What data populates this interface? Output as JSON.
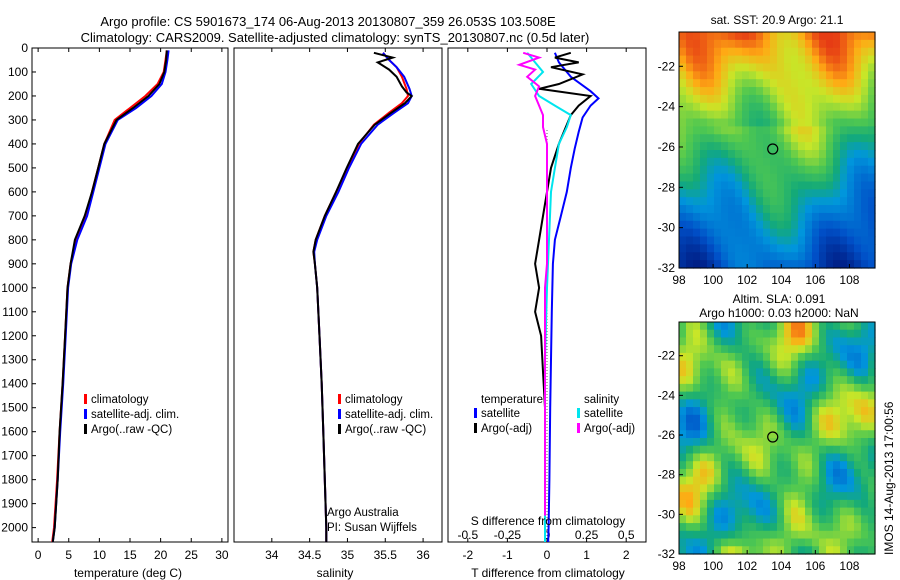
{
  "title_line1": "Argo profile: CS 5901673_174 06-Aug-2013 20130807_359 26.053S 103.508E",
  "title_line2": "Climatology: CARS2009. Satellite-adjusted climatology: synTS_20130807.nc (0.5d later)",
  "colors": {
    "climatology": "#ff0000",
    "satellite": "#0000ff",
    "argo": "#000000",
    "sat_salinity": "#00e5ee",
    "argo_salinity": "#ff00ff"
  },
  "chart_data": [
    {
      "type": "line",
      "name": "temperature",
      "xlabel": "temperature (deg C)",
      "xlim": [
        -1,
        31
      ],
      "ylim": [
        2060,
        0
      ],
      "xticks": [
        "0",
        "5",
        "10",
        "15",
        "20",
        "25",
        "30"
      ],
      "yticks": [
        "0",
        "100",
        "200",
        "300",
        "400",
        "500",
        "600",
        "700",
        "800",
        "900",
        "1000",
        "1100",
        "1200",
        "1300",
        "1400",
        "1500",
        "1600",
        "1700",
        "1800",
        "1900",
        "2000"
      ],
      "legend": [
        "climatology",
        "satellite-adj. clim.",
        "Argo(..raw -QC)"
      ],
      "series": [
        {
          "name": "climatology",
          "points": [
            [
              21,
              10
            ],
            [
              20.8,
              50
            ],
            [
              20.5,
              100
            ],
            [
              19.5,
              150
            ],
            [
              17.5,
              200
            ],
            [
              15,
              250
            ],
            [
              12.5,
              300
            ],
            [
              10.8,
              400
            ],
            [
              9.8,
              500
            ],
            [
              8.8,
              600
            ],
            [
              7.8,
              700
            ],
            [
              6.2,
              800
            ],
            [
              5.3,
              900
            ],
            [
              4.8,
              1000
            ],
            [
              4.4,
              1200
            ],
            [
              4,
              1400
            ],
            [
              3.5,
              1600
            ],
            [
              3.1,
              1800
            ],
            [
              2.6,
              2000
            ],
            [
              2.3,
              2060
            ]
          ]
        },
        {
          "name": "satellite-adj. clim.",
          "points": [
            [
              21.3,
              10
            ],
            [
              21.1,
              50
            ],
            [
              20.8,
              100
            ],
            [
              20.2,
              150
            ],
            [
              18.5,
              200
            ],
            [
              16,
              250
            ],
            [
              13,
              300
            ],
            [
              11,
              400
            ],
            [
              10,
              500
            ],
            [
              9,
              600
            ],
            [
              8,
              700
            ],
            [
              6.4,
              800
            ],
            [
              5.4,
              900
            ],
            [
              4.9,
              1000
            ],
            [
              4.5,
              1200
            ],
            [
              4.1,
              1400
            ],
            [
              3.6,
              1600
            ],
            [
              3.2,
              1800
            ],
            [
              2.7,
              2000
            ],
            [
              2.4,
              2060
            ]
          ]
        },
        {
          "name": "Argo(..raw -QC)",
          "points": [
            [
              21,
              10
            ],
            [
              20.9,
              50
            ],
            [
              20.6,
              100
            ],
            [
              19.8,
              150
            ],
            [
              18,
              200
            ],
            [
              15.5,
              250
            ],
            [
              12.8,
              300
            ],
            [
              10.8,
              400
            ],
            [
              9.8,
              500
            ],
            [
              8.8,
              600
            ],
            [
              7.6,
              700
            ],
            [
              6,
              800
            ],
            [
              5.3,
              900
            ],
            [
              4.8,
              1000
            ],
            [
              4.4,
              1200
            ],
            [
              4,
              1400
            ],
            [
              3.5,
              1600
            ],
            [
              3.2,
              1800
            ],
            [
              2.7,
              2000
            ],
            [
              2.4,
              2060
            ]
          ]
        }
      ]
    },
    {
      "type": "line",
      "name": "salinity",
      "xlabel": "salinity",
      "xlim": [
        33.5,
        36.25
      ],
      "ylim": [
        2060,
        0
      ],
      "xticks": [
        "34",
        "34.5",
        "35",
        "35.5",
        "36"
      ],
      "legend": [
        "climatology",
        "satellite-adj. clim.",
        "Argo(..raw -QC)"
      ],
      "annotation_line1": "Argo Australia",
      "annotation_line2": "PI: Susan Wijffels",
      "series": [
        {
          "name": "climatology",
          "points": [
            [
              35.47,
              20
            ],
            [
              35.55,
              50
            ],
            [
              35.65,
              80
            ],
            [
              35.72,
              120
            ],
            [
              35.78,
              170
            ],
            [
              35.8,
              200
            ],
            [
              35.72,
              230
            ],
            [
              35.55,
              270
            ],
            [
              35.35,
              320
            ],
            [
              35.15,
              400
            ],
            [
              35,
              500
            ],
            [
              34.85,
              600
            ],
            [
              34.7,
              700
            ],
            [
              34.58,
              800
            ],
            [
              34.55,
              850
            ],
            [
              34.57,
              900
            ],
            [
              34.6,
              1000
            ],
            [
              34.63,
              1200
            ],
            [
              34.66,
              1400
            ],
            [
              34.68,
              1600
            ],
            [
              34.7,
              1800
            ],
            [
              34.72,
              2000
            ],
            [
              34.72,
              2060
            ]
          ]
        },
        {
          "name": "satellite-adj. clim.",
          "points": [
            [
              35.47,
              20
            ],
            [
              35.55,
              50
            ],
            [
              35.65,
              80
            ],
            [
              35.75,
              120
            ],
            [
              35.82,
              170
            ],
            [
              35.85,
              200
            ],
            [
              35.8,
              230
            ],
            [
              35.62,
              270
            ],
            [
              35.4,
              320
            ],
            [
              35.18,
              400
            ],
            [
              35.02,
              500
            ],
            [
              34.88,
              600
            ],
            [
              34.72,
              700
            ],
            [
              34.6,
              800
            ],
            [
              34.56,
              850
            ],
            [
              34.57,
              900
            ],
            [
              34.6,
              1000
            ],
            [
              34.63,
              1200
            ],
            [
              34.66,
              1400
            ],
            [
              34.68,
              1600
            ],
            [
              34.7,
              1800
            ],
            [
              34.72,
              2000
            ],
            [
              34.72,
              2060
            ]
          ]
        },
        {
          "name": "Argo(..raw -QC)",
          "points": [
            [
              35.35,
              20
            ],
            [
              35.6,
              40
            ],
            [
              35.4,
              60
            ],
            [
              35.55,
              90
            ],
            [
              35.65,
              120
            ],
            [
              35.72,
              160
            ],
            [
              35.78,
              185
            ],
            [
              35.85,
              200
            ],
            [
              35.76,
              230
            ],
            [
              35.58,
              270
            ],
            [
              35.36,
              320
            ],
            [
              35.14,
              400
            ],
            [
              34.99,
              500
            ],
            [
              34.85,
              600
            ],
            [
              34.7,
              700
            ],
            [
              34.58,
              800
            ],
            [
              34.55,
              850
            ],
            [
              34.57,
              900
            ],
            [
              34.6,
              1000
            ],
            [
              34.63,
              1200
            ],
            [
              34.66,
              1400
            ],
            [
              34.68,
              1600
            ],
            [
              34.7,
              1800
            ],
            [
              34.72,
              2000
            ],
            [
              34.72,
              2060
            ]
          ]
        }
      ]
    },
    {
      "type": "line",
      "name": "differences",
      "xlabel": "T difference from climatology",
      "xlabel_top": "S difference from climatology",
      "xlim": [
        -2.5,
        2.5
      ],
      "ylim": [
        2060,
        0
      ],
      "xticks": [
        "-2",
        "-1",
        "0",
        "1",
        "2"
      ],
      "s_ticks": [
        "-0.5",
        "-0.25",
        "0",
        "0.25",
        "0.5"
      ],
      "legend_title_t": "temperature",
      "legend_title_s": "salinity",
      "legend": [
        "satellite",
        "Argo(-adj)",
        "satellite",
        "Argo(-adj)"
      ],
      "series": [
        {
          "name": "satellite",
          "points": [
            [
              0.2,
              20
            ],
            [
              0.3,
              60
            ],
            [
              0.6,
              120
            ],
            [
              1.1,
              180
            ],
            [
              1.3,
              210
            ],
            [
              1.1,
              240
            ],
            [
              0.9,
              290
            ],
            [
              0.8,
              350
            ],
            [
              0.7,
              420
            ],
            [
              0.6,
              500
            ],
            [
              0.5,
              600
            ],
            [
              0.35,
              700
            ],
            [
              0.2,
              800
            ],
            [
              0.15,
              900
            ],
            [
              0.12,
              1100
            ],
            [
              0.1,
              1300
            ],
            [
              0.08,
              1500
            ],
            [
              0.06,
              1800
            ],
            [
              0.04,
              2000
            ],
            [
              0.03,
              2060
            ]
          ]
        },
        {
          "name": "Argo(-adj)",
          "points": [
            [
              0.6,
              20
            ],
            [
              0.2,
              40
            ],
            [
              0.8,
              60
            ],
            [
              0.1,
              80
            ],
            [
              0.9,
              110
            ],
            [
              0.3,
              150
            ],
            [
              -0.2,
              170
            ],
            [
              1.1,
              200
            ],
            [
              0.8,
              240
            ],
            [
              0.6,
              280
            ],
            [
              0.5,
              320
            ],
            [
              0.3,
              400
            ],
            [
              0.1,
              500
            ],
            [
              0.0,
              600
            ],
            [
              -0.1,
              700
            ],
            [
              -0.2,
              800
            ],
            [
              -0.3,
              900
            ],
            [
              -0.2,
              1000
            ],
            [
              -0.3,
              1100
            ],
            [
              -0.15,
              1200
            ],
            [
              -0.1,
              1350
            ],
            [
              -0.05,
              1500
            ],
            [
              -0.05,
              1800
            ],
            [
              -0.05,
              1900
            ]
          ]
        },
        {
          "name": "satellite-salinity",
          "points": [
            [
              -0.5,
              20
            ],
            [
              -0.3,
              60
            ],
            [
              -0.1,
              100
            ],
            [
              -0.4,
              150
            ],
            [
              -0.2,
              200
            ],
            [
              0.2,
              240
            ],
            [
              0.6,
              280
            ],
            [
              0.5,
              330
            ],
            [
              0.3,
              400
            ],
            [
              0.2,
              500
            ],
            [
              0.1,
              600
            ],
            [
              0.05,
              800
            ],
            [
              0.0,
              1000
            ],
            [
              -0.05,
              1300
            ],
            [
              -0.05,
              1600
            ],
            [
              -0.05,
              1900
            ],
            [
              -0.05,
              2060
            ]
          ]
        },
        {
          "name": "Argo(-adj)-salinity",
          "points": [
            [
              -0.6,
              20
            ],
            [
              -0.2,
              40
            ],
            [
              -0.7,
              70
            ],
            [
              -0.3,
              90
            ],
            [
              -0.5,
              120
            ],
            [
              -0.2,
              160
            ],
            [
              -0.3,
              200
            ],
            [
              -0.2,
              240
            ],
            [
              -0.1,
              280
            ],
            [
              -0.1,
              330
            ],
            [
              0.0,
              400
            ],
            [
              0.0,
              500
            ],
            [
              0.0,
              600
            ],
            [
              0.0,
              700
            ],
            [
              0.0,
              800
            ],
            [
              0.0,
              900
            ],
            [
              -0.05,
              1000
            ],
            [
              -0.05,
              1200
            ],
            [
              -0.05,
              1400
            ],
            [
              -0.05,
              1600
            ],
            [
              -0.05,
              1800
            ],
            [
              -0.05,
              1950
            ]
          ]
        }
      ]
    },
    {
      "type": "heatmap",
      "name": "sst-map",
      "title": "sat. SST: 20.9 Argo: 21.1",
      "xticks": [
        "98",
        "100",
        "102",
        "104",
        "106",
        "108"
      ],
      "yticks": [
        "-22",
        "-24",
        "-26",
        "-28",
        "-30",
        "-32"
      ],
      "xlim": [
        98,
        109.5
      ],
      "ylim": [
        -32,
        -20.3
      ],
      "marker": [
        103.5,
        -26.1
      ]
    },
    {
      "type": "heatmap",
      "name": "sla-map",
      "title_line1": "Altim. SLA: 0.091",
      "title_line2": "Argo h1000: 0.03 h2000: NaN",
      "xticks": [
        "98",
        "100",
        "102",
        "104",
        "106",
        "108"
      ],
      "yticks": [
        "-22",
        "-24",
        "-26",
        "-28",
        "-30",
        "-32"
      ],
      "xlim": [
        98,
        109.5
      ],
      "ylim": [
        -32,
        -20.3
      ],
      "marker": [
        103.5,
        -26.1
      ]
    }
  ],
  "footer_stamp": "IMOS 14-Aug-2013 17:00:56"
}
